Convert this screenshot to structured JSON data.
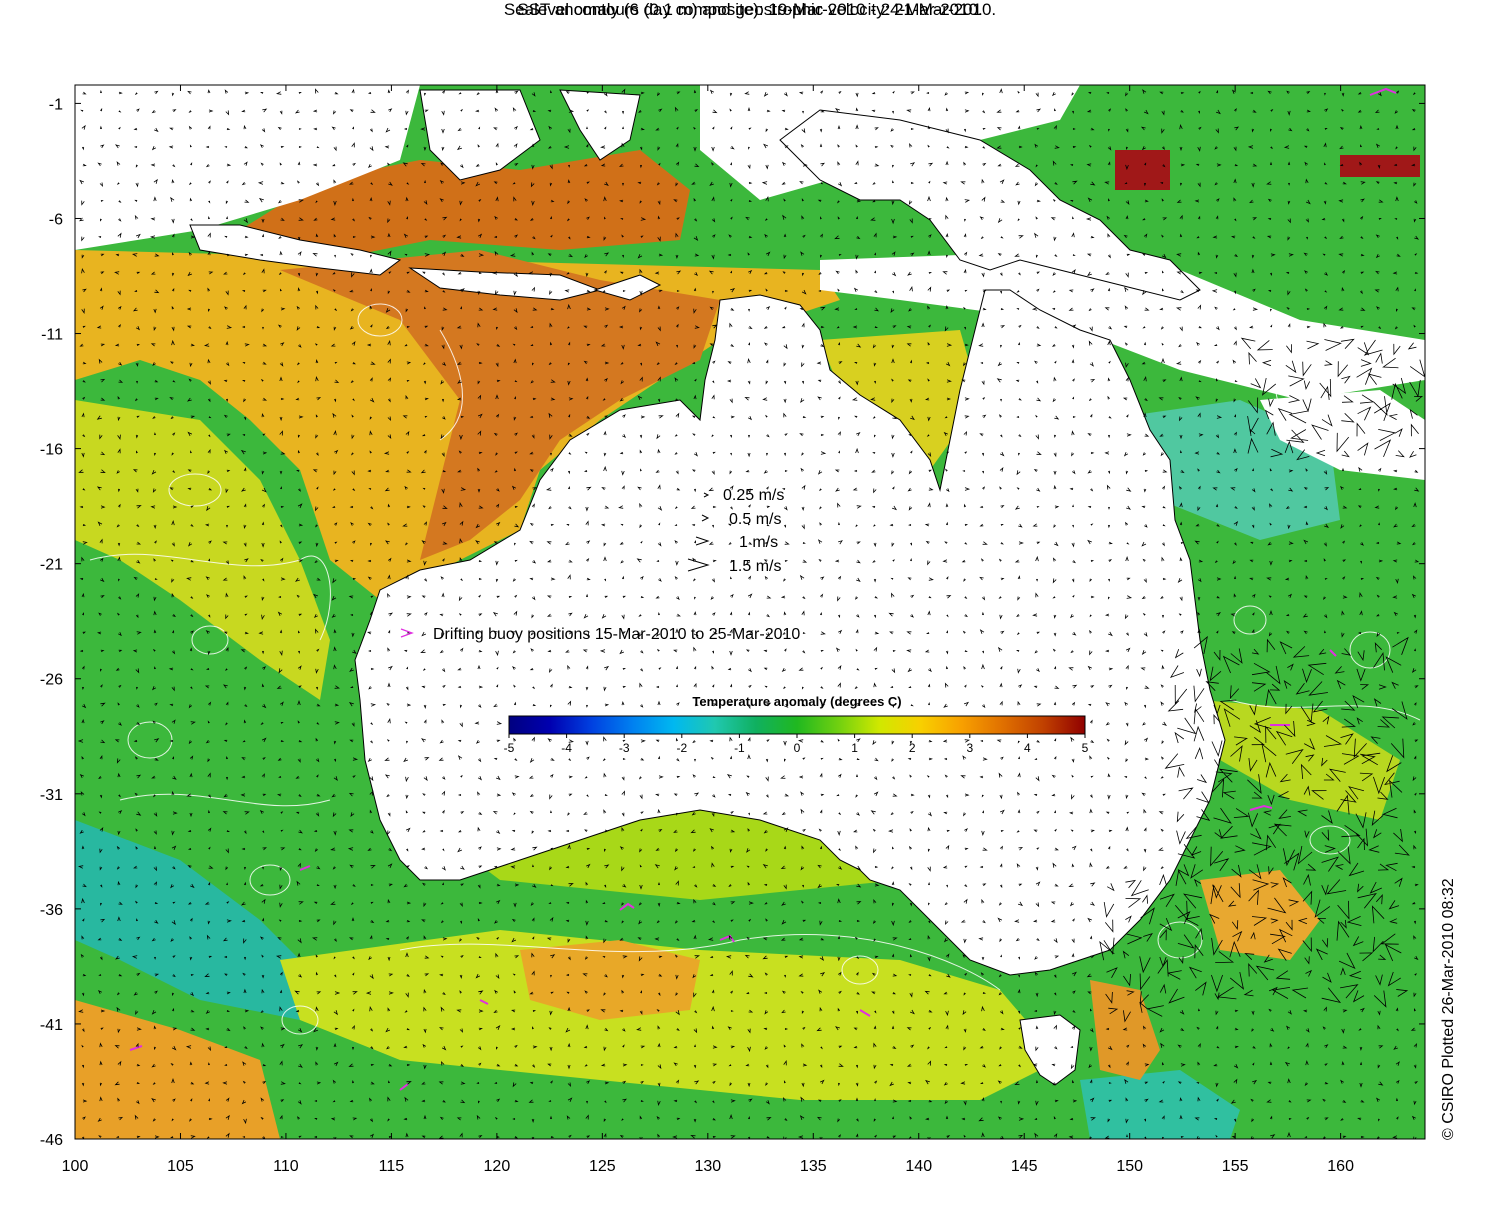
{
  "title_line1": "SST anomaly (6 day composite): 19-Mar-2010 - 24-Mar-2010.",
  "title_line2": "Sealevel contours (0.1 m) and geostrophic velocity: 21-Mar-2010.",
  "credit": "© CSIRO Plotted 26-Mar-2010 08:32",
  "velocity_legend": [
    "0.25 m/s",
    "0.5 m/s",
    "1 m/s",
    "1.5 m/s"
  ],
  "buoy_legend": "Drifting buoy positions 15-Mar-2010 to 25-Mar-2010",
  "colorbar": {
    "title": "Temperature anomaly (degrees C)",
    "ticks": [
      "-5",
      "-4",
      "-3",
      "-2",
      "-1",
      "0",
      "1",
      "2",
      "3",
      "4",
      "5"
    ],
    "range": [
      -5,
      5
    ],
    "colors": [
      "#000080",
      "#0000b0",
      "#0040e0",
      "#0080f0",
      "#00b8f0",
      "#20c8b0",
      "#10b060",
      "#20b820",
      "#70d010",
      "#d0e800",
      "#f8d000",
      "#f8a000",
      "#e07000",
      "#c04000",
      "#900000"
    ]
  },
  "axes": {
    "lon_ticks": [
      "100",
      "105",
      "110",
      "115",
      "120",
      "125",
      "130",
      "135",
      "140",
      "145",
      "150",
      "155",
      "160"
    ],
    "lat_ticks": [
      "-1",
      "-6",
      "-11",
      "-16",
      "-21",
      "-26",
      "-31",
      "-36",
      "-41",
      "-46"
    ],
    "lon_range": [
      100,
      164
    ],
    "lat_range": [
      -46,
      -0.2
    ]
  },
  "colors": {
    "land": "#ffffff",
    "ocean_base": "#3cb83c",
    "warm": "#e8a020",
    "hot": "#c86010",
    "cool": "#20b8a8",
    "buoy": "#e030e0",
    "contour": "#ffffff",
    "arrow": "#000000"
  }
}
